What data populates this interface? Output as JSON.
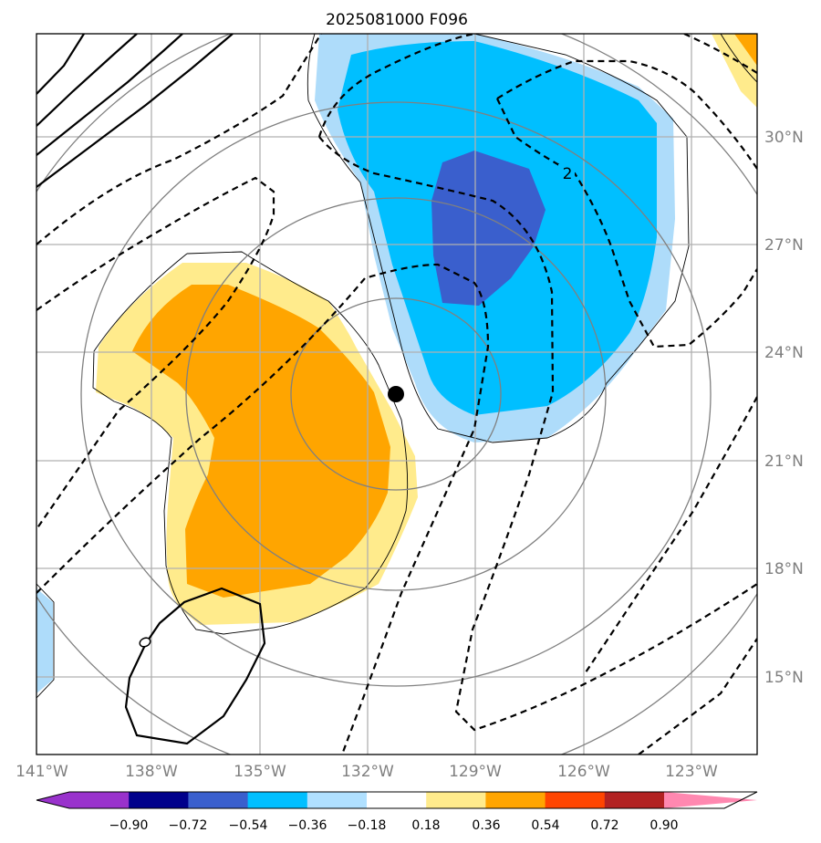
{
  "title": "2025081000 F096",
  "longitude_ticks": [
    "141°W",
    "138°W",
    "135°W",
    "132°W",
    "129°W",
    "126°W",
    "123°W"
  ],
  "latitude_ticks": [
    "30°N",
    "27°N",
    "24°N",
    "21°N",
    "18°N",
    "15°N"
  ],
  "contour_label": "2",
  "colorbar": {
    "tick_labels": [
      "−0.90",
      "−0.72",
      "−0.54",
      "−0.36",
      "−0.18",
      "0.18",
      "0.36",
      "0.54",
      "0.72",
      "0.90"
    ],
    "colors": [
      "#9932cc",
      "#00008b",
      "#3a5fcd",
      "#00bfff",
      "#b0e0ff",
      "#ffffff",
      "#ffeb8c",
      "#ffa500",
      "#ff4500",
      "#b22222",
      "#ff88b0"
    ]
  },
  "colors": {
    "light_blue": "#aedcfa",
    "blue": "#00bfff",
    "dark_blue": "#3a5fcd",
    "light_yellow": "#ffeb8c",
    "orange": "#ffa500",
    "grid": "#b0b0b0",
    "range_ring": "#808080"
  },
  "chart_data": {
    "type": "map",
    "title": "2025081000 F096",
    "lon_range": [
      -141,
      -121
    ],
    "lat_range": [
      13,
      33
    ],
    "storm_center": {
      "lon": -130.7,
      "lat": 22.8
    },
    "shaded_field_levels": [
      -0.9,
      -0.72,
      -0.54,
      -0.36,
      -0.18,
      0.18,
      0.36,
      0.54,
      0.72,
      0.9
    ]
  }
}
